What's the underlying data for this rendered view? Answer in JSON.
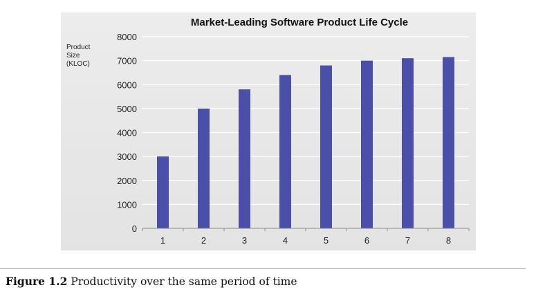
{
  "chart_data": {
    "type": "bar",
    "title": "Market-Leading Software Product Life Cycle",
    "ylabel_lines": [
      "Product",
      "Size",
      "(KLOC)"
    ],
    "xlabel": "",
    "categories": [
      "1",
      "2",
      "3",
      "4",
      "5",
      "6",
      "7",
      "8"
    ],
    "values": [
      3000,
      5000,
      5800,
      6400,
      6800,
      7000,
      7100,
      7150
    ],
    "ylim": [
      0,
      8000
    ],
    "yticks": [
      "0",
      "1000",
      "2000",
      "3000",
      "4000",
      "5000",
      "6000",
      "7000",
      "8000"
    ],
    "grid": true,
    "legend": "none",
    "colors": {
      "bar": "#4a4fa8",
      "grid": "#ffffff",
      "panel": "#e6e6e6"
    }
  },
  "caption": {
    "label": "Figure 1.2",
    "text": "Productivity over the same period of time"
  }
}
